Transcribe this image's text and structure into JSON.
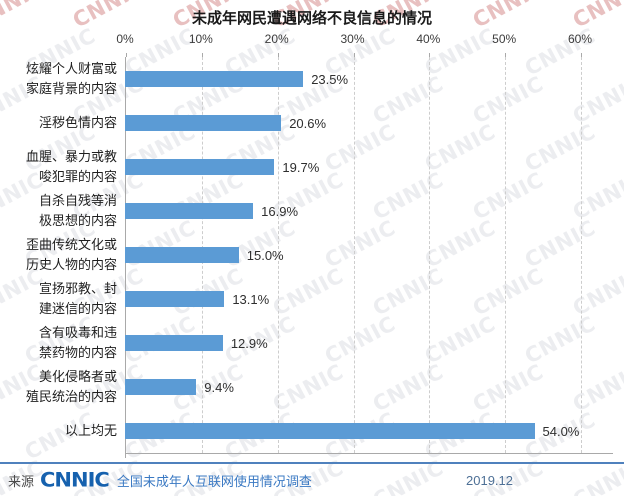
{
  "title": "未成年网民遭遇网络不良信息的情况",
  "chart_data": {
    "type": "bar",
    "orientation": "horizontal",
    "title": "未成年网民遭遇网络不良信息的情况",
    "categories": [
      "炫耀个人财富或\n家庭背景的内容",
      "淫秽色情内容",
      "血腥、暴力或教\n唆犯罪的内容",
      "自杀自残等消\n极思想的内容",
      "歪曲传统文化或\n历史人物的内容",
      "宣扬邪教、封\n建迷信的内容",
      "含有吸毒和违\n禁药物的内容",
      "美化侵略者或\n殖民统治的内容",
      "以上均无"
    ],
    "values": [
      23.5,
      20.6,
      19.7,
      16.9,
      15.0,
      13.1,
      12.9,
      9.4,
      54.0
    ],
    "value_labels": [
      "23.5%",
      "20.6%",
      "19.7%",
      "16.9%",
      "15.0%",
      "13.1%",
      "12.9%",
      "9.4%",
      "54.0%"
    ],
    "x_ticks": [
      "0%",
      "10%",
      "20%",
      "30%",
      "40%",
      "50%",
      "60%"
    ],
    "xlim": [
      0,
      60
    ],
    "xlabel": "",
    "ylabel": "",
    "grid": "dashed-vertical",
    "legend": "none",
    "bar_color": "#5b9bd5"
  },
  "watermark": {
    "text": "CNNIC"
  },
  "footer": {
    "source_label": "来源",
    "logo": "CNNIC",
    "survey": "全国未成年人互联网使用情况调查",
    "date": "2019.12"
  }
}
